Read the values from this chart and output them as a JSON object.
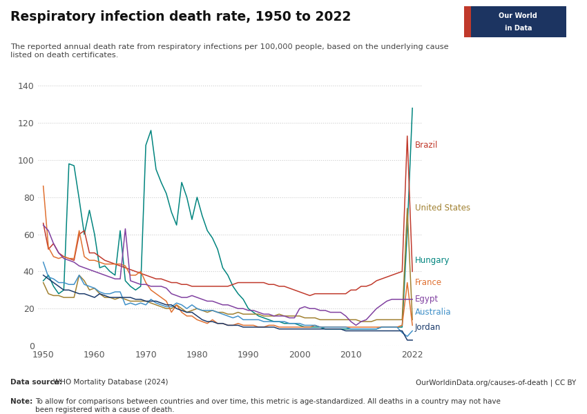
{
  "title": "Respiratory infection death rate, 1950 to 2022",
  "subtitle": "The reported annual death rate from respiratory infections per 100,000 people, based on the underlying cause\nlisted on death certificates.",
  "ylim": [
    0,
    145
  ],
  "yticks": [
    0,
    20,
    40,
    60,
    80,
    100,
    120,
    140
  ],
  "xlim": [
    1949,
    2024
  ],
  "xticks": [
    1950,
    1960,
    1970,
    1980,
    1990,
    2000,
    2010,
    2022
  ],
  "datasource_bold": "Data source: ",
  "datasource_rest": "WHO Mortality Database (2024)",
  "url": "OurWorldinData.org/causes-of-death | CC BY",
  "note_bold": "Note: ",
  "note_rest": "To allow for comparisons between countries and over time, this metric is age-standardized. All deaths in a country may not have\nbeen registered with a cause of death.",
  "background_color": "#ffffff",
  "grid_color": "#cccccc",
  "logo_bg": "#1c3461",
  "logo_red": "#c0392b",
  "series": {
    "Hungary": {
      "color": "#00847e",
      "data": {
        "1950": 35,
        "1951": 38,
        "1952": 32,
        "1953": 28,
        "1954": 30,
        "1955": 98,
        "1956": 97,
        "1957": 79,
        "1958": 60,
        "1959": 73,
        "1960": 60,
        "1961": 42,
        "1962": 43,
        "1963": 40,
        "1964": 38,
        "1965": 62,
        "1966": 35,
        "1967": 32,
        "1968": 30,
        "1969": 32,
        "1970": 108,
        "1971": 116,
        "1972": 95,
        "1973": 88,
        "1974": 82,
        "1975": 72,
        "1976": 65,
        "1977": 88,
        "1978": 80,
        "1979": 68,
        "1980": 80,
        "1981": 70,
        "1982": 62,
        "1983": 58,
        "1984": 52,
        "1985": 42,
        "1986": 38,
        "1987": 32,
        "1988": 28,
        "1989": 25,
        "1990": 20,
        "1991": 18,
        "1992": 16,
        "1993": 15,
        "1994": 14,
        "1995": 13,
        "1996": 13,
        "1997": 12,
        "1998": 12,
        "1999": 12,
        "2000": 11,
        "2001": 10,
        "2002": 10,
        "2003": 10,
        "2004": 10,
        "2005": 9,
        "2006": 9,
        "2007": 9,
        "2008": 9,
        "2009": 9,
        "2010": 9,
        "2011": 9,
        "2012": 9,
        "2013": 9,
        "2014": 9,
        "2015": 9,
        "2016": 10,
        "2017": 10,
        "2018": 10,
        "2019": 10,
        "2020": 10,
        "2021": 62,
        "2022": 128
      }
    },
    "Brazil": {
      "color": "#c0392b",
      "data": {
        "1950": 66,
        "1951": 52,
        "1952": 55,
        "1953": 50,
        "1954": 48,
        "1955": 47,
        "1956": 46,
        "1957": 60,
        "1958": 62,
        "1959": 50,
        "1960": 50,
        "1961": 48,
        "1962": 46,
        "1963": 45,
        "1964": 44,
        "1965": 43,
        "1966": 42,
        "1967": 41,
        "1968": 40,
        "1969": 39,
        "1970": 38,
        "1971": 37,
        "1972": 36,
        "1973": 36,
        "1974": 35,
        "1975": 34,
        "1976": 34,
        "1977": 33,
        "1978": 33,
        "1979": 32,
        "1980": 32,
        "1981": 32,
        "1982": 32,
        "1983": 32,
        "1984": 32,
        "1985": 32,
        "1986": 32,
        "1987": 33,
        "1988": 34,
        "1989": 34,
        "1990": 34,
        "1991": 34,
        "1992": 34,
        "1993": 34,
        "1994": 33,
        "1995": 33,
        "1996": 32,
        "1997": 32,
        "1998": 31,
        "1999": 30,
        "2000": 29,
        "2001": 28,
        "2002": 27,
        "2003": 28,
        "2004": 28,
        "2005": 28,
        "2006": 28,
        "2007": 28,
        "2008": 28,
        "2009": 28,
        "2010": 30,
        "2011": 30,
        "2012": 32,
        "2013": 32,
        "2014": 33,
        "2015": 35,
        "2016": 36,
        "2017": 37,
        "2018": 38,
        "2019": 39,
        "2020": 40,
        "2021": 113,
        "2022": 40
      }
    },
    "United States": {
      "color": "#a08030",
      "data": {
        "1950": 34,
        "1951": 28,
        "1952": 27,
        "1953": 27,
        "1954": 26,
        "1955": 26,
        "1956": 26,
        "1957": 38,
        "1958": 35,
        "1959": 30,
        "1960": 31,
        "1961": 28,
        "1962": 26,
        "1963": 26,
        "1964": 25,
        "1965": 26,
        "1966": 25,
        "1967": 24,
        "1968": 24,
        "1969": 24,
        "1970": 24,
        "1971": 23,
        "1972": 22,
        "1973": 21,
        "1974": 20,
        "1975": 20,
        "1976": 22,
        "1977": 20,
        "1978": 18,
        "1979": 19,
        "1980": 20,
        "1981": 19,
        "1982": 18,
        "1983": 19,
        "1984": 18,
        "1985": 18,
        "1986": 17,
        "1987": 17,
        "1988": 18,
        "1989": 17,
        "1990": 17,
        "1991": 17,
        "1992": 17,
        "1993": 16,
        "1994": 16,
        "1995": 16,
        "1996": 17,
        "1997": 16,
        "1998": 16,
        "1999": 16,
        "2000": 16,
        "2001": 15,
        "2002": 15,
        "2003": 15,
        "2004": 14,
        "2005": 14,
        "2006": 14,
        "2007": 14,
        "2008": 14,
        "2009": 14,
        "2010": 14,
        "2011": 14,
        "2012": 13,
        "2013": 13,
        "2014": 13,
        "2015": 14,
        "2016": 14,
        "2017": 14,
        "2018": 14,
        "2019": 14,
        "2020": 14,
        "2021": 74,
        "2022": 14
      }
    },
    "France": {
      "color": "#e07030",
      "data": {
        "1950": 86,
        "1951": 53,
        "1952": 48,
        "1953": 47,
        "1954": 48,
        "1955": 47,
        "1956": 47,
        "1957": 62,
        "1958": 48,
        "1959": 46,
        "1960": 46,
        "1961": 45,
        "1962": 44,
        "1963": 44,
        "1964": 44,
        "1965": 44,
        "1966": 43,
        "1967": 38,
        "1968": 38,
        "1969": 40,
        "1970": 34,
        "1971": 30,
        "1972": 28,
        "1973": 26,
        "1974": 24,
        "1975": 18,
        "1976": 22,
        "1977": 18,
        "1978": 16,
        "1979": 16,
        "1980": 14,
        "1981": 13,
        "1982": 12,
        "1983": 14,
        "1984": 12,
        "1985": 12,
        "1986": 11,
        "1987": 11,
        "1988": 12,
        "1989": 11,
        "1990": 11,
        "1991": 11,
        "1992": 10,
        "1993": 10,
        "1994": 11,
        "1995": 11,
        "1996": 10,
        "1997": 10,
        "1998": 10,
        "1999": 10,
        "2000": 10,
        "2001": 10,
        "2002": 10,
        "2003": 11,
        "2004": 10,
        "2005": 10,
        "2006": 10,
        "2007": 10,
        "2008": 10,
        "2009": 10,
        "2010": 10,
        "2011": 10,
        "2012": 10,
        "2013": 10,
        "2014": 10,
        "2015": 10,
        "2016": 10,
        "2017": 10,
        "2018": 10,
        "2019": 10,
        "2020": 11,
        "2021": 34,
        "2022": 11
      }
    },
    "Egypt": {
      "color": "#8040a0",
      "data": {
        "1950": 65,
        "1951": 62,
        "1952": 55,
        "1953": 50,
        "1954": 47,
        "1955": 46,
        "1956": 45,
        "1957": 43,
        "1958": 42,
        "1959": 41,
        "1960": 40,
        "1961": 39,
        "1962": 38,
        "1963": 37,
        "1964": 36,
        "1965": 36,
        "1966": 63,
        "1967": 35,
        "1968": 34,
        "1969": 33,
        "1970": 33,
        "1971": 32,
        "1972": 32,
        "1973": 32,
        "1974": 31,
        "1975": 28,
        "1976": 27,
        "1977": 26,
        "1978": 26,
        "1979": 27,
        "1980": 26,
        "1981": 25,
        "1982": 24,
        "1983": 24,
        "1984": 23,
        "1985": 22,
        "1986": 22,
        "1987": 21,
        "1988": 20,
        "1989": 20,
        "1990": 19,
        "1991": 19,
        "1992": 18,
        "1993": 17,
        "1994": 17,
        "1995": 16,
        "1996": 16,
        "1997": 16,
        "1998": 15,
        "1999": 15,
        "2000": 20,
        "2001": 21,
        "2002": 20,
        "2003": 20,
        "2004": 19,
        "2005": 19,
        "2006": 18,
        "2007": 18,
        "2008": 18,
        "2009": 16,
        "2010": 13,
        "2011": 11,
        "2012": 13,
        "2013": 14,
        "2014": 17,
        "2015": 20,
        "2016": 22,
        "2017": 24,
        "2018": 25,
        "2019": 25,
        "2020": 25,
        "2021": 25,
        "2022": 25
      }
    },
    "Australia": {
      "color": "#4090c8",
      "data": {
        "1950": 45,
        "1951": 37,
        "1952": 36,
        "1953": 34,
        "1954": 34,
        "1955": 33,
        "1956": 33,
        "1957": 38,
        "1958": 33,
        "1959": 32,
        "1960": 31,
        "1961": 29,
        "1962": 28,
        "1963": 28,
        "1964": 29,
        "1965": 29,
        "1966": 22,
        "1967": 23,
        "1968": 22,
        "1969": 23,
        "1970": 22,
        "1971": 25,
        "1972": 23,
        "1973": 22,
        "1974": 21,
        "1975": 21,
        "1976": 23,
        "1977": 22,
        "1978": 20,
        "1979": 22,
        "1980": 20,
        "1981": 19,
        "1982": 19,
        "1983": 19,
        "1984": 18,
        "1985": 17,
        "1986": 16,
        "1987": 15,
        "1988": 16,
        "1989": 14,
        "1990": 14,
        "1991": 14,
        "1992": 14,
        "1993": 13,
        "1994": 13,
        "1995": 13,
        "1996": 13,
        "1997": 13,
        "1998": 12,
        "1999": 12,
        "2000": 12,
        "2001": 11,
        "2002": 11,
        "2003": 11,
        "2004": 10,
        "2005": 10,
        "2006": 10,
        "2007": 10,
        "2008": 10,
        "2009": 10,
        "2010": 9,
        "2011": 9,
        "2012": 9,
        "2013": 9,
        "2014": 9,
        "2015": 9,
        "2016": 10,
        "2017": 10,
        "2018": 10,
        "2019": 10,
        "2020": 7,
        "2021": 5,
        "2022": 8
      }
    },
    "Jordan": {
      "color": "#1a3a6b",
      "data": {
        "1950": 38,
        "1951": 36,
        "1952": 34,
        "1953": 32,
        "1954": 30,
        "1955": 30,
        "1956": 29,
        "1957": 28,
        "1958": 28,
        "1959": 27,
        "1960": 26,
        "1961": 28,
        "1962": 27,
        "1963": 26,
        "1964": 26,
        "1965": 26,
        "1966": 26,
        "1967": 26,
        "1968": 25,
        "1969": 25,
        "1970": 24,
        "1971": 24,
        "1972": 24,
        "1973": 23,
        "1974": 22,
        "1975": 22,
        "1976": 20,
        "1977": 19,
        "1978": 18,
        "1979": 18,
        "1980": 16,
        "1981": 14,
        "1982": 13,
        "1983": 13,
        "1984": 12,
        "1985": 12,
        "1986": 11,
        "1987": 11,
        "1988": 11,
        "1989": 10,
        "1990": 10,
        "1991": 10,
        "1992": 10,
        "1993": 10,
        "1994": 10,
        "1995": 10,
        "1996": 9,
        "1997": 9,
        "1998": 9,
        "1999": 9,
        "2000": 9,
        "2001": 9,
        "2002": 9,
        "2003": 9,
        "2004": 9,
        "2005": 9,
        "2006": 9,
        "2007": 9,
        "2008": 9,
        "2009": 8,
        "2010": 8,
        "2011": 8,
        "2012": 8,
        "2013": 8,
        "2014": 8,
        "2015": 8,
        "2016": 8,
        "2017": 8,
        "2018": 8,
        "2019": 8,
        "2020": 8,
        "2021": 3,
        "2022": 3
      }
    }
  },
  "label_positions": {
    "Brazil": {
      "y": 108
    },
    "United States": {
      "y": 74
    },
    "Hungary": {
      "y": 46
    },
    "France": {
      "y": 34
    },
    "Egypt": {
      "y": 25
    },
    "Australia": {
      "y": 18
    },
    "Jordan": {
      "y": 10
    }
  }
}
